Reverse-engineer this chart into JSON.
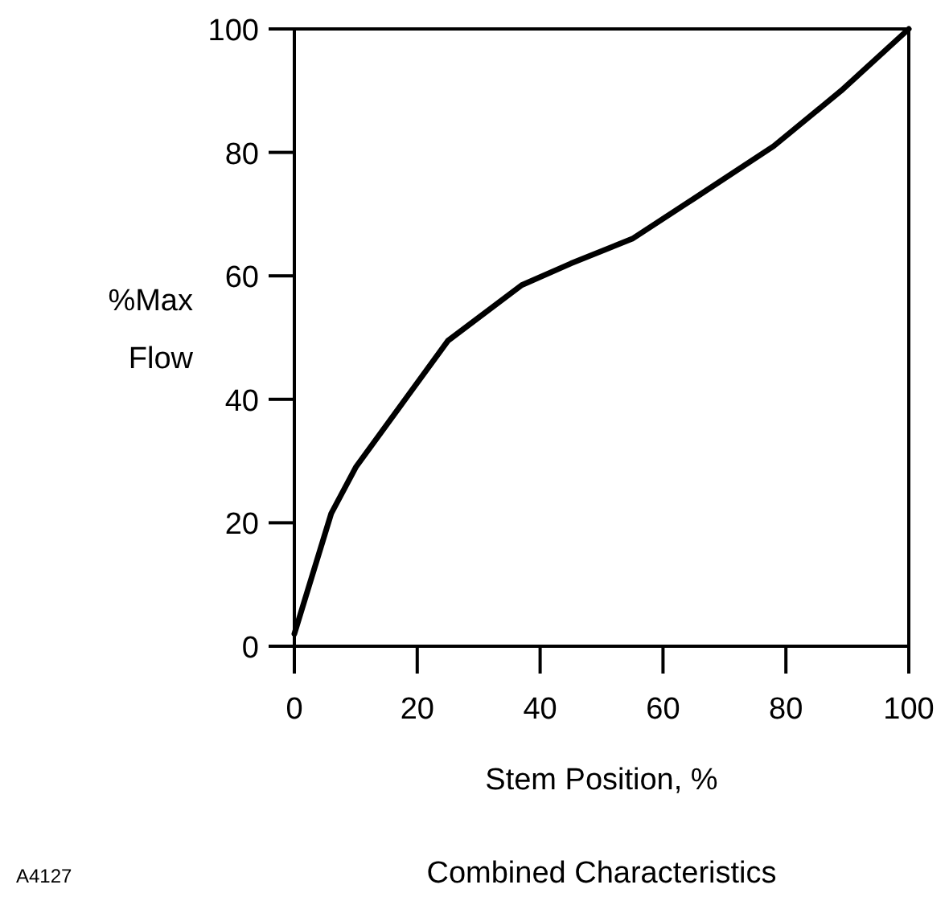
{
  "chart_data": {
    "type": "line",
    "title": "Combined Characteristics",
    "xlabel": "Stem Position, %",
    "ylabel": "%Max Flow",
    "annotations": [
      "A4127"
    ],
    "x": [
      0,
      6,
      10,
      25,
      37,
      45,
      55,
      65,
      78,
      89,
      100
    ],
    "series": [
      {
        "color": "#000000",
        "values": [
          2,
          21.5,
          29,
          49.5,
          58.5,
          62,
          66,
          72.5,
          81,
          90,
          100
        ]
      }
    ],
    "xlim": [
      0,
      100
    ],
    "ylim": [
      0,
      100
    ],
    "xticks": [
      0,
      20,
      40,
      60,
      80,
      100
    ],
    "yticks": [
      0,
      20,
      40,
      60,
      80,
      100
    ],
    "marker": "none",
    "line_style": "solid"
  }
}
